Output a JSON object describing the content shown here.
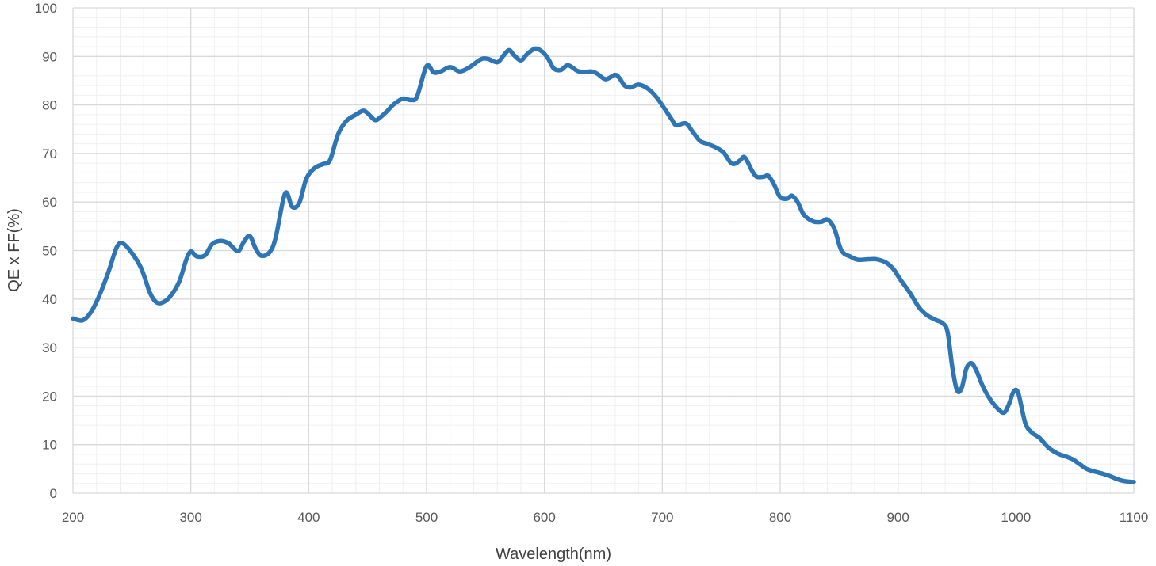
{
  "chart_data": {
    "type": "line",
    "title": "",
    "xlabel": "Wavelength(nm)",
    "ylabel": "QE x FF(%)",
    "xlim": [
      200,
      1100
    ],
    "ylim": [
      0,
      100
    ],
    "x_ticks": [
      200,
      300,
      400,
      500,
      600,
      700,
      800,
      900,
      1000,
      1100
    ],
    "y_ticks": [
      0,
      10,
      20,
      30,
      40,
      50,
      60,
      70,
      80,
      90,
      100
    ],
    "grid": {
      "major": true,
      "minor": true,
      "minor_x_step": 20,
      "minor_y_step": 2
    },
    "legend": "none",
    "series": [
      {
        "color": "#2e75b6",
        "x": [
          200,
          208,
          215,
          222,
          230,
          237,
          242,
          250,
          258,
          265,
          270,
          275,
          282,
          290,
          296,
          300,
          305,
          312,
          318,
          325,
          332,
          340,
          345,
          350,
          355,
          360,
          367,
          372,
          380,
          386,
          392,
          398,
          405,
          412,
          418,
          425,
          432,
          440,
          446,
          450,
          456,
          460,
          466,
          472,
          480,
          487,
          492,
          500,
          506,
          512,
          520,
          528,
          536,
          546,
          552,
          560,
          565,
          570,
          574,
          580,
          585,
          592,
          598,
          603,
          608,
          614,
          620,
          628,
          634,
          640,
          645,
          652,
          660,
          664,
          668,
          673,
          680,
          688,
          695,
          702,
          708,
          712,
          720,
          726,
          732,
          738,
          745,
          752,
          758,
          762,
          766,
          770,
          776,
          780,
          786,
          790,
          795,
          800,
          806,
          810,
          815,
          820,
          828,
          835,
          840,
          846,
          852,
          860,
          866,
          875,
          882,
          890,
          896,
          902,
          910,
          918,
          925,
          932,
          938,
          942,
          946,
          950,
          954,
          958,
          962,
          966,
          972,
          978,
          985,
          990,
          994,
          998,
          1002,
          1008,
          1014,
          1020,
          1028,
          1036,
          1042,
          1048,
          1054,
          1060,
          1066,
          1074,
          1080,
          1086,
          1092,
          1100
        ],
        "y": [
          36,
          35.6,
          37.2,
          40.5,
          45.5,
          50.6,
          51.5,
          49.5,
          46.3,
          41.5,
          39.5,
          39.2,
          40.4,
          43.5,
          48.0,
          49.8,
          48.8,
          49.0,
          51.3,
          52.0,
          51.5,
          49.9,
          51.8,
          53.0,
          50.4,
          48.9,
          49.7,
          52.7,
          61.8,
          59.0,
          59.8,
          64.8,
          67.0,
          67.8,
          68.6,
          74.0,
          76.7,
          78.0,
          78.8,
          78.3,
          76.9,
          77.3,
          78.6,
          80.1,
          81.3,
          81.0,
          81.8,
          88.0,
          86.7,
          86.9,
          87.8,
          86.9,
          87.7,
          89.4,
          89.5,
          88.8,
          90.1,
          91.3,
          90.3,
          89.2,
          90.4,
          91.6,
          91.0,
          89.6,
          87.5,
          87.2,
          88.2,
          87.0,
          86.8,
          86.9,
          86.4,
          85.3,
          86.2,
          85.4,
          84.0,
          83.6,
          84.2,
          83.3,
          81.6,
          79.2,
          77.0,
          75.8,
          76.2,
          74.4,
          72.6,
          72.0,
          71.3,
          70.2,
          68.1,
          67.9,
          68.6,
          69.2,
          66.5,
          65.2,
          65.2,
          65.4,
          63.5,
          61.0,
          60.7,
          61.3,
          59.9,
          57.4,
          56.0,
          55.9,
          56.4,
          54.5,
          50.0,
          48.7,
          48.1,
          48.2,
          48.2,
          47.5,
          46.2,
          44.0,
          41.3,
          38.2,
          36.6,
          35.7,
          35.0,
          33.2,
          26.0,
          21.2,
          21.7,
          25.7,
          26.8,
          25.5,
          22.0,
          19.4,
          17.3,
          16.6,
          18.3,
          20.9,
          20.6,
          14.4,
          12.4,
          11.4,
          9.3,
          8.1,
          7.6,
          7.0,
          6.0,
          5.0,
          4.5,
          4.0,
          3.5,
          2.9,
          2.5,
          2.3
        ]
      }
    ]
  }
}
